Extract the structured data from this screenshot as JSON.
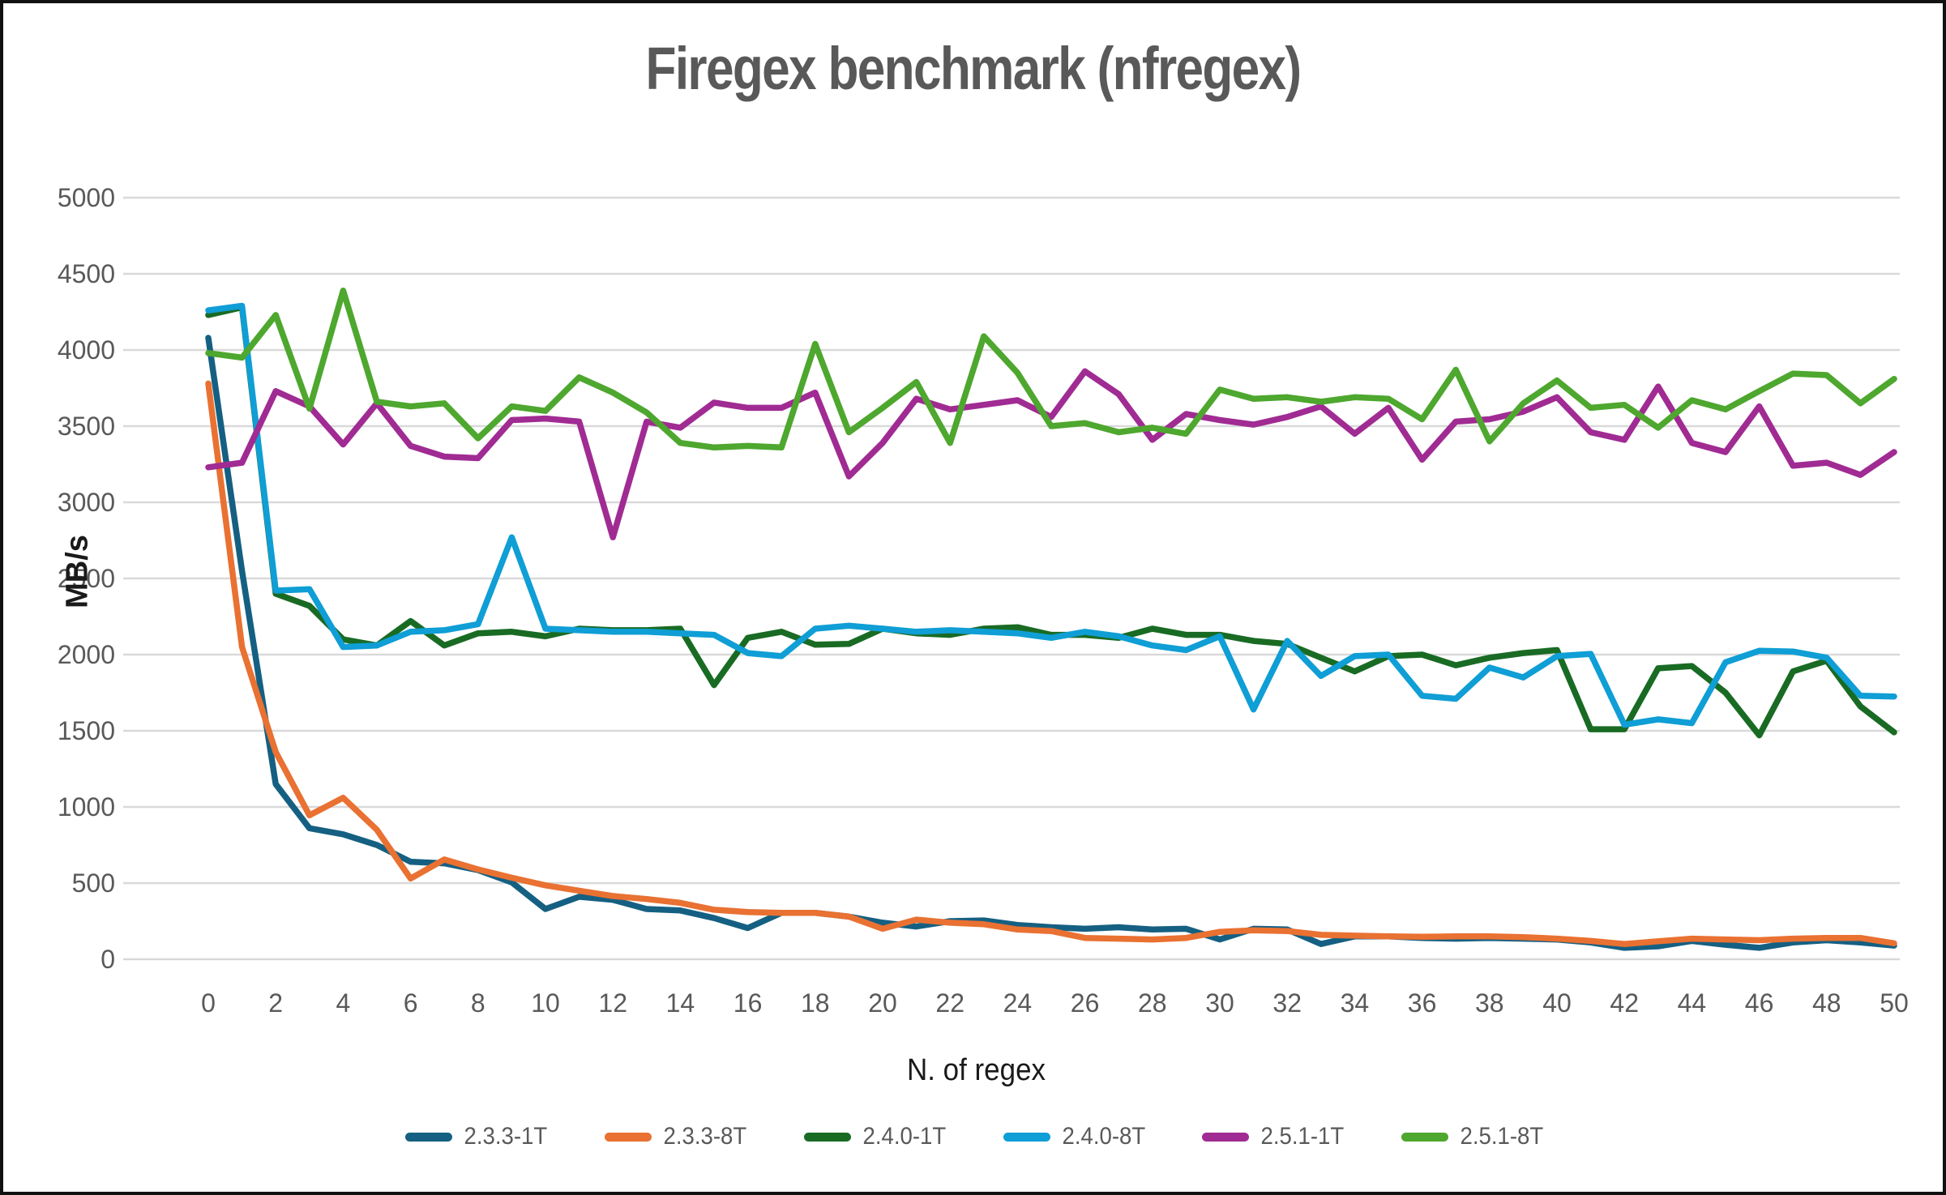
{
  "title": "Firegex benchmark (nfregex)",
  "chart_data": {
    "type": "line",
    "title": "Firegex benchmark (nfregex)",
    "xlabel": "N. of regex",
    "ylabel": "MB/s",
    "xlim": [
      0,
      50
    ],
    "ylim": [
      0,
      5000
    ],
    "xtick_step": 2,
    "ytick_step": 500,
    "grid": "horizontal",
    "grid_color": "#d9d9d9",
    "tick_label_color": "#595959",
    "legend_position": "bottom",
    "x": [
      0,
      1,
      2,
      3,
      4,
      5,
      6,
      7,
      8,
      9,
      10,
      11,
      12,
      13,
      14,
      15,
      16,
      17,
      18,
      19,
      20,
      21,
      22,
      23,
      24,
      25,
      26,
      27,
      28,
      29,
      30,
      31,
      32,
      33,
      34,
      35,
      36,
      37,
      38,
      39,
      40,
      41,
      42,
      43,
      44,
      45,
      46,
      47,
      48,
      49,
      50
    ],
    "series": [
      {
        "name": "2.3.3-1T",
        "color": "#156082",
        "values": [
          4080,
          2550,
          1150,
          860,
          820,
          750,
          640,
          630,
          585,
          505,
          330,
          410,
          390,
          330,
          320,
          270,
          205,
          305,
          305,
          280,
          240,
          215,
          250,
          255,
          225,
          210,
          200,
          210,
          195,
          200,
          130,
          200,
          195,
          100,
          150,
          150,
          140,
          135,
          140,
          135,
          130,
          110,
          75,
          85,
          120,
          95,
          75,
          110,
          125,
          110,
          90
        ]
      },
      {
        "name": "2.3.3-8T",
        "color": "#E97132",
        "values": [
          3780,
          2050,
          1360,
          945,
          1060,
          850,
          530,
          655,
          590,
          535,
          485,
          450,
          415,
          395,
          370,
          325,
          310,
          305,
          305,
          280,
          200,
          260,
          240,
          230,
          195,
          185,
          140,
          135,
          130,
          140,
          180,
          190,
          185,
          160,
          155,
          150,
          148,
          150,
          150,
          145,
          135,
          120,
          100,
          118,
          135,
          130,
          125,
          135,
          140,
          140,
          105
        ]
      },
      {
        "name": "2.4.0-1T",
        "color": "#196B24",
        "values": [
          4230,
          4280,
          2400,
          2320,
          2100,
          2060,
          2220,
          2060,
          2140,
          2150,
          2120,
          2170,
          2160,
          2160,
          2170,
          1800,
          2110,
          2150,
          2065,
          2070,
          2170,
          2140,
          2130,
          2170,
          2180,
          2130,
          2130,
          2110,
          2170,
          2130,
          2130,
          2090,
          2070,
          1980,
          1890,
          1990,
          2000,
          1930,
          1980,
          2010,
          2030,
          1510,
          1510,
          1910,
          1925,
          1750,
          1470,
          1890,
          1960,
          1660,
          1490
        ]
      },
      {
        "name": "2.4.0-8T",
        "color": "#0F9ED5",
        "values": [
          4260,
          4290,
          2420,
          2430,
          2050,
          2060,
          2150,
          2160,
          2200,
          2770,
          2170,
          2160,
          2150,
          2150,
          2140,
          2130,
          2010,
          1990,
          2170,
          2190,
          2170,
          2150,
          2160,
          2150,
          2140,
          2110,
          2150,
          2120,
          2060,
          2030,
          2120,
          1640,
          2090,
          1860,
          1990,
          2000,
          1730,
          1710,
          1915,
          1850,
          1990,
          2005,
          1540,
          1575,
          1550,
          1950,
          2025,
          2020,
          1980,
          1730,
          1725
        ]
      },
      {
        "name": "2.5.1-1T",
        "color": "#A02B93",
        "values": [
          3230,
          3260,
          3730,
          3630,
          3380,
          3650,
          3370,
          3300,
          3290,
          3540,
          3550,
          3530,
          2770,
          3530,
          3490,
          3655,
          3620,
          3620,
          3720,
          3170,
          3390,
          3680,
          3610,
          3640,
          3670,
          3560,
          3860,
          3710,
          3410,
          3580,
          3540,
          3510,
          3560,
          3630,
          3450,
          3620,
          3280,
          3530,
          3545,
          3595,
          3690,
          3460,
          3410,
          3760,
          3390,
          3330,
          3630,
          3240,
          3260,
          3180,
          3330
        ]
      },
      {
        "name": "2.5.1-8T",
        "color": "#4EA72E",
        "values": [
          3980,
          3950,
          4230,
          3615,
          4390,
          3660,
          3630,
          3650,
          3420,
          3630,
          3600,
          3820,
          3720,
          3590,
          3390,
          3360,
          3370,
          3360,
          4040,
          3460,
          3620,
          3790,
          3390,
          4090,
          3850,
          3500,
          3520,
          3460,
          3490,
          3450,
          3740,
          3680,
          3690,
          3660,
          3690,
          3680,
          3545,
          3870,
          3400,
          3650,
          3800,
          3620,
          3640,
          3490,
          3670,
          3610,
          3730,
          3845,
          3835,
          3650,
          3810
        ]
      }
    ]
  }
}
